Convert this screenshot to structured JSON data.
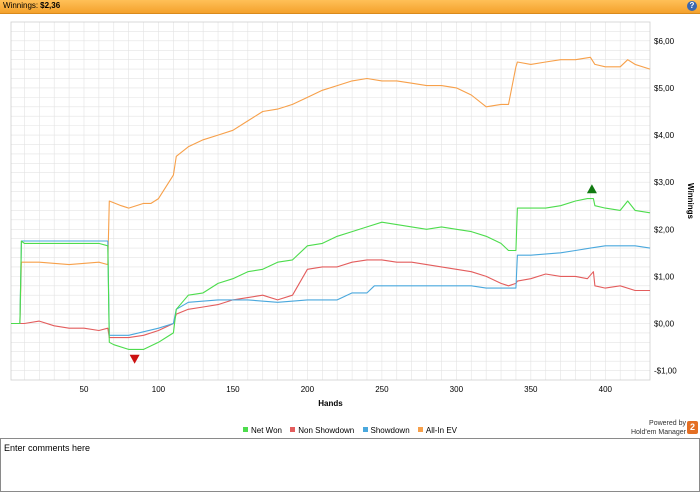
{
  "header": {
    "label": "Winnings:",
    "amount": "$2,36",
    "help_icon": "?"
  },
  "comments": {
    "placeholder": "Enter comments here"
  },
  "powered": {
    "line1": "Powered by",
    "line2": "Hold'em Manager",
    "logo_text": "2"
  },
  "colors": {
    "net_won": "#4ddc4d",
    "non_showdown": "#e35d5d",
    "showdown": "#4aa8dd",
    "allin_ev": "#f7a04a",
    "grid": "#e3e3e3",
    "up_marker": "#117a11",
    "down_marker": "#cc1111"
  },
  "chart_data": {
    "type": "line",
    "xlabel": "Hands",
    "ylabel": "Winnings",
    "xlim": [
      1,
      430
    ],
    "ylim": [
      -1.2,
      6.4
    ],
    "xticks": [
      50,
      100,
      150,
      200,
      250,
      300,
      350,
      400
    ],
    "xtick_labels": [
      "50",
      "100",
      "150",
      "200",
      "250",
      "300",
      "350",
      "400"
    ],
    "yticks": [
      -1,
      0,
      1,
      2,
      3,
      4,
      5,
      6
    ],
    "ytick_labels": [
      "-$1,00",
      "$0,00",
      "$1,00",
      "$2,00",
      "$3,00",
      "$4,00",
      "$5,00",
      "$6,00"
    ],
    "legend_position": "bottom",
    "series": [
      {
        "name": "Net Won",
        "key": "net_won",
        "x": [
          1,
          7,
          8,
          10,
          20,
          40,
          60,
          66,
          67,
          70,
          80,
          90,
          100,
          105,
          110,
          112,
          120,
          130,
          140,
          150,
          160,
          170,
          180,
          190,
          200,
          210,
          220,
          230,
          240,
          250,
          260,
          270,
          280,
          290,
          300,
          310,
          320,
          330,
          335,
          340,
          341,
          350,
          360,
          370,
          380,
          388,
          392,
          393,
          400,
          410,
          415,
          420,
          430
        ],
        "y": [
          0,
          0,
          1.75,
          1.7,
          1.7,
          1.7,
          1.7,
          1.65,
          -0.4,
          -0.45,
          -0.55,
          -0.55,
          -0.4,
          -0.3,
          -0.2,
          0.3,
          0.6,
          0.65,
          0.85,
          0.95,
          1.1,
          1.15,
          1.3,
          1.35,
          1.65,
          1.7,
          1.85,
          1.95,
          2.05,
          2.15,
          2.1,
          2.05,
          2.0,
          2.05,
          2.0,
          1.95,
          1.85,
          1.7,
          1.55,
          1.55,
          2.45,
          2.45,
          2.45,
          2.5,
          2.6,
          2.65,
          2.65,
          2.5,
          2.45,
          2.4,
          2.6,
          2.4,
          2.35
        ]
      },
      {
        "name": "Non Showdown",
        "key": "non_showdown",
        "x": [
          1,
          10,
          20,
          30,
          40,
          50,
          60,
          66,
          67,
          80,
          90,
          100,
          110,
          112,
          120,
          130,
          140,
          150,
          160,
          170,
          180,
          190,
          200,
          210,
          220,
          230,
          240,
          250,
          260,
          270,
          280,
          290,
          300,
          310,
          320,
          330,
          335,
          340,
          341,
          350,
          360,
          370,
          380,
          388,
          392,
          393,
          400,
          410,
          420,
          430
        ],
        "y": [
          0,
          0,
          0.05,
          -0.05,
          -0.1,
          -0.1,
          -0.15,
          -0.1,
          -0.3,
          -0.3,
          -0.25,
          -0.15,
          0,
          0.2,
          0.3,
          0.35,
          0.4,
          0.5,
          0.55,
          0.6,
          0.5,
          0.6,
          1.15,
          1.2,
          1.2,
          1.3,
          1.35,
          1.35,
          1.3,
          1.3,
          1.25,
          1.2,
          1.15,
          1.1,
          1.0,
          0.85,
          0.8,
          0.85,
          0.9,
          0.95,
          1.05,
          1.0,
          1.0,
          0.95,
          1.1,
          0.8,
          0.75,
          0.8,
          0.7,
          0.7
        ]
      },
      {
        "name": "Showdown",
        "key": "showdown",
        "x": [
          1,
          7,
          8,
          20,
          40,
          55,
          56,
          66,
          67,
          80,
          100,
          110,
          112,
          120,
          140,
          160,
          180,
          200,
          210,
          220,
          230,
          240,
          245,
          250,
          260,
          270,
          280,
          290,
          300,
          310,
          320,
          330,
          335,
          340,
          341,
          350,
          370,
          380,
          390,
          400,
          410,
          420,
          430
        ],
        "y": [
          0,
          0,
          1.75,
          1.75,
          1.75,
          1.75,
          1.75,
          1.75,
          -0.25,
          -0.25,
          -0.1,
          0,
          0.3,
          0.45,
          0.5,
          0.5,
          0.45,
          0.5,
          0.5,
          0.5,
          0.65,
          0.65,
          0.8,
          0.8,
          0.8,
          0.8,
          0.8,
          0.8,
          0.8,
          0.8,
          0.75,
          0.75,
          0.75,
          0.75,
          1.45,
          1.45,
          1.5,
          1.55,
          1.6,
          1.65,
          1.65,
          1.65,
          1.6
        ]
      },
      {
        "name": "All-In EV",
        "key": "allin_ev",
        "x": [
          1,
          7,
          8,
          20,
          40,
          60,
          66,
          67,
          75,
          80,
          90,
          95,
          100,
          110,
          112,
          120,
          130,
          140,
          150,
          160,
          170,
          180,
          190,
          200,
          210,
          220,
          230,
          240,
          250,
          260,
          270,
          280,
          290,
          300,
          310,
          320,
          330,
          335,
          340,
          341,
          350,
          360,
          370,
          380,
          390,
          393,
          400,
          410,
          415,
          420,
          430
        ],
        "y": [
          0,
          0,
          1.3,
          1.3,
          1.25,
          1.3,
          1.25,
          2.6,
          2.5,
          2.45,
          2.55,
          2.55,
          2.65,
          3.15,
          3.55,
          3.75,
          3.9,
          4.0,
          4.1,
          4.3,
          4.5,
          4.55,
          4.65,
          4.8,
          4.95,
          5.05,
          5.15,
          5.2,
          5.15,
          5.15,
          5.1,
          5.05,
          5.05,
          5.0,
          4.85,
          4.6,
          4.65,
          4.65,
          5.45,
          5.55,
          5.5,
          5.55,
          5.6,
          5.6,
          5.65,
          5.5,
          5.45,
          5.45,
          5.6,
          5.5,
          5.4
        ]
      }
    ],
    "markers": [
      {
        "name": "max-winnings-marker",
        "type": "up",
        "x": 391,
        "y": 2.85
      },
      {
        "name": "min-winnings-marker",
        "type": "down",
        "x": 84,
        "y": -0.75
      }
    ]
  }
}
